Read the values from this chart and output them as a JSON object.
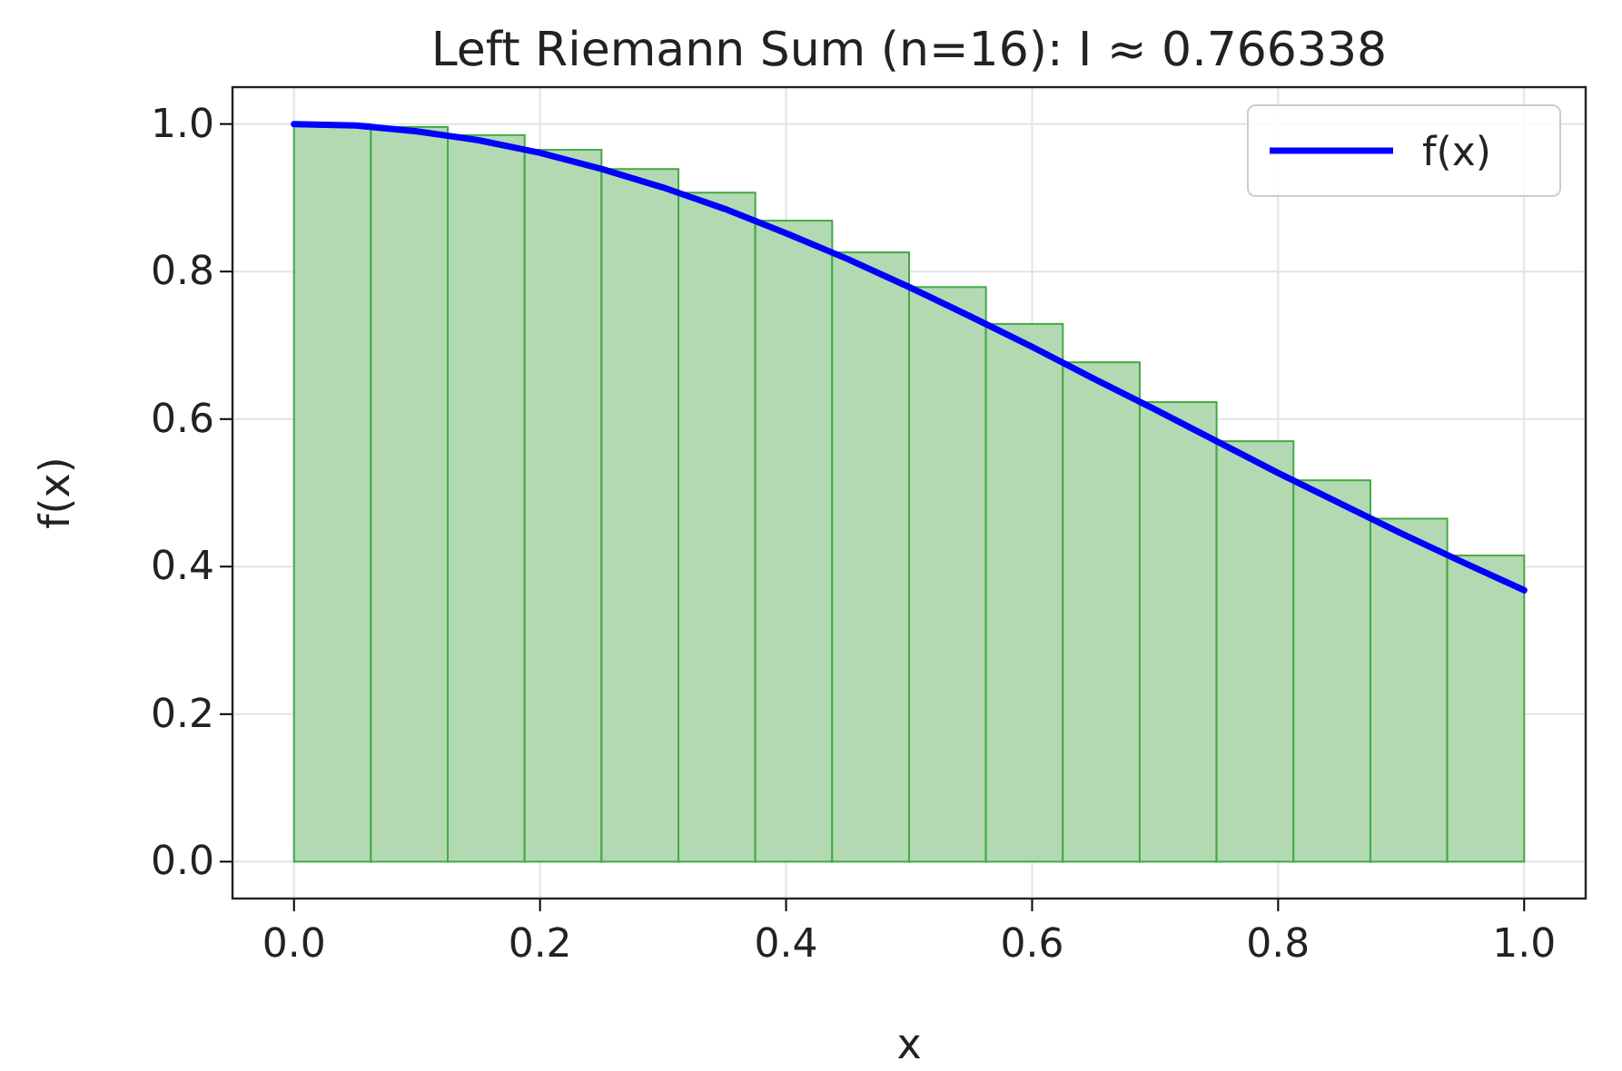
{
  "chart_data": {
    "type": "histogram",
    "title": "Left Riemann Sum (n=16): I ≈ 0.766338",
    "xlabel": "x",
    "ylabel": "f(x)",
    "bins": [
      0,
      0.0625,
      0.125,
      0.1875,
      0.25,
      0.3125,
      0.375,
      0.4375,
      0.5,
      0.5625,
      0.625,
      0.6875,
      0.75,
      0.8125,
      0.875,
      0.9375,
      1
    ],
    "values": [
      1.0,
      0.996,
      0.985,
      0.965,
      0.939,
      0.907,
      0.869,
      0.826,
      0.779,
      0.729,
      0.677,
      0.623,
      0.57,
      0.517,
      0.465,
      0.415
    ],
    "color": "#b3d9b3",
    "series": [
      {
        "name": "f(x)",
        "type": "line",
        "color": "#0000ff",
        "x": [
          0,
          0.05,
          0.1,
          0.15,
          0.2,
          0.25,
          0.3,
          0.35,
          0.4,
          0.45,
          0.5,
          0.55,
          0.6,
          0.65,
          0.7,
          0.75,
          0.8,
          0.85,
          0.9,
          0.95,
          1
        ],
        "values": [
          1.0,
          0.998,
          0.99,
          0.978,
          0.961,
          0.939,
          0.914,
          0.885,
          0.852,
          0.817,
          0.779,
          0.739,
          0.698,
          0.655,
          0.613,
          0.57,
          0.527,
          0.486,
          0.445,
          0.406,
          0.368
        ]
      }
    ],
    "xlim": [
      -0.05,
      1.05
    ],
    "ylim": [
      -0.05,
      1.05
    ],
    "xticks": [
      {
        "value": 0,
        "label": "0.0"
      },
      {
        "value": 0.2,
        "label": "0.2"
      },
      {
        "value": 0.4,
        "label": "0.4"
      },
      {
        "value": 0.6,
        "label": "0.6"
      },
      {
        "value": 0.8,
        "label": "0.8"
      },
      {
        "value": 1,
        "label": "1.0"
      }
    ],
    "yticks": [
      {
        "value": 0,
        "label": "0.0"
      },
      {
        "value": 0.2,
        "label": "0.2"
      },
      {
        "value": 0.4,
        "label": "0.4"
      },
      {
        "value": 0.6,
        "label": "0.6"
      },
      {
        "value": 0.8,
        "label": "0.8"
      },
      {
        "value": 1,
        "label": "1.0"
      }
    ],
    "grid": true,
    "legend": "top right"
  }
}
